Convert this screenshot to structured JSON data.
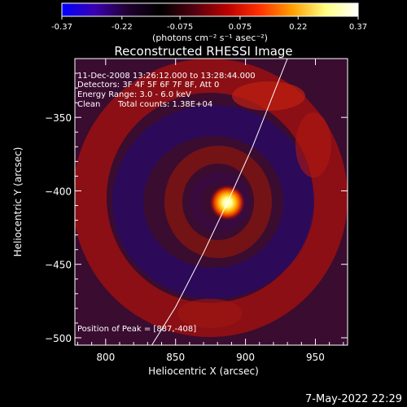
{
  "colorbar": {
    "ticks": [
      "-0.37",
      "-0.22",
      "-0.075",
      "0.075",
      "0.22",
      "0.37"
    ],
    "label": "(photons cm⁻² s⁻¹ asec⁻²)",
    "min": -0.37,
    "max": 0.37,
    "colors": [
      "#0000ff",
      "#3a00b0",
      "#200030",
      "#000000",
      "#500010",
      "#b80000",
      "#ff3000",
      "#ffa000",
      "#ffff80",
      "#ffffff"
    ]
  },
  "chart_data": {
    "type": "heatmap",
    "title": "Reconstructed RHESSI Image",
    "xlabel": "Heliocentric X (arcsec)",
    "ylabel": "Heliocentric Y (arcsec)",
    "xlim": [
      778,
      973
    ],
    "ylim": [
      -505,
      -310
    ],
    "xticks": [
      800,
      850,
      900,
      950
    ],
    "yticks": [
      -350,
      -400,
      -450,
      -500
    ],
    "annotations": {
      "time": "11-Dec-2008 13:26:12.000 to 13:28:44.000",
      "detectors": "Detectors: 3F 4F 5F 6F 7F 8F, Att 0",
      "energy": "Energy Range: 3.0 - 6.0 keV",
      "method": "Clean",
      "counts": "Total counts: 1.38E+04",
      "peak": "Position of Peak = [887,-408]"
    },
    "peak": {
      "x": 887,
      "y": -408
    },
    "limb_curve": [
      [
        833,
        -505
      ],
      [
        850,
        -479
      ],
      [
        870,
        -442
      ],
      [
        887,
        -408
      ],
      [
        905,
        -370
      ],
      [
        930,
        -310
      ]
    ]
  },
  "footer": {
    "date": "7-May-2022 22:29"
  }
}
